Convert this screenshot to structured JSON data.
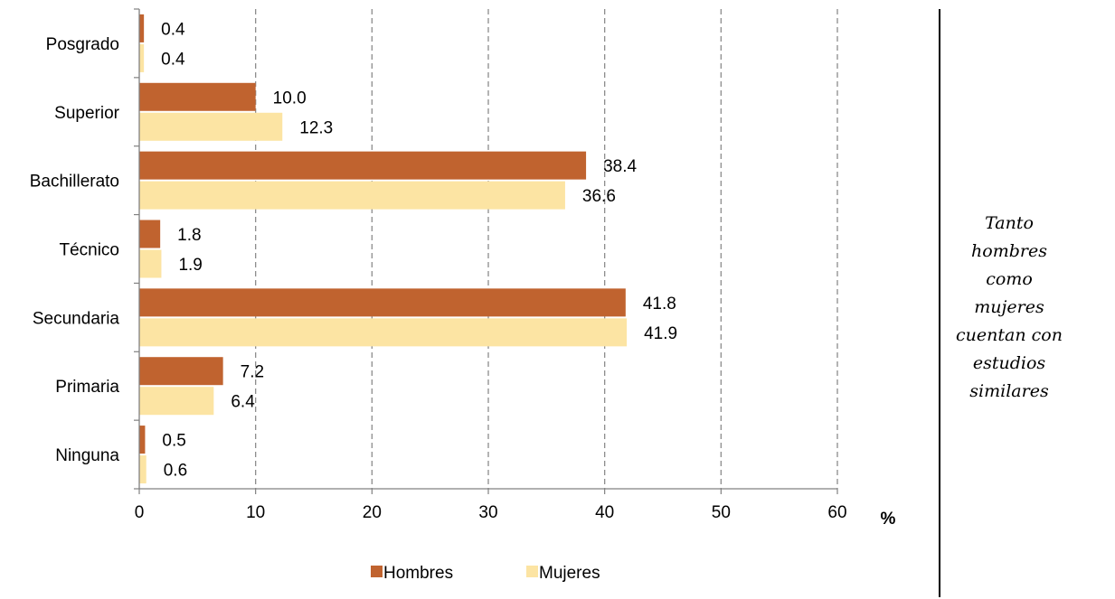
{
  "chart_data": {
    "type": "bar",
    "orientation": "horizontal",
    "categories": [
      "Posgrado",
      "Superior",
      "Bachillerato",
      "Técnico",
      "Secundaria",
      "Primaria",
      "Ninguna"
    ],
    "series": [
      {
        "name": "Hombres",
        "color": "#C0632F",
        "values": [
          0.4,
          10.0,
          38.4,
          1.8,
          41.8,
          7.2,
          0.5
        ]
      },
      {
        "name": "Mujeres",
        "color": "#FCE4A3",
        "values": [
          0.4,
          12.3,
          36.6,
          1.9,
          41.9,
          6.4,
          0.6
        ]
      }
    ],
    "xlim": [
      0,
      60
    ],
    "xticks": [
      0,
      10,
      20,
      30,
      40,
      50,
      60
    ],
    "xlabel": "%",
    "grid": "vertical dashed",
    "legend_position": "bottom",
    "decimals": 1
  },
  "side_note": "Tanto hombres como mujeres cuentan con estudios similares"
}
